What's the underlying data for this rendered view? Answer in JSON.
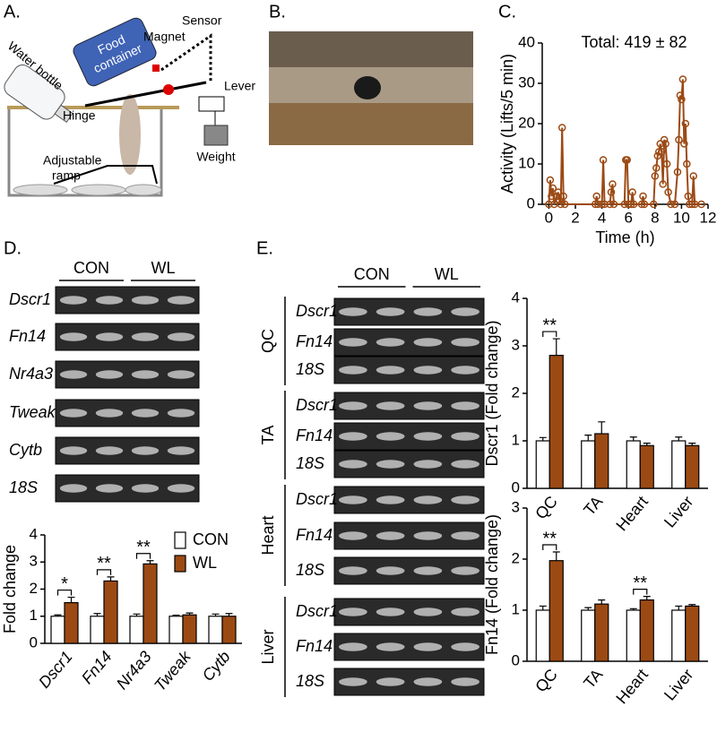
{
  "panels": {
    "a": "A.",
    "b": "B.",
    "c": "C.",
    "d": "D.",
    "e": "E."
  },
  "diagram": {
    "water_bottle": "Water bottle",
    "food_container": [
      "Food",
      "container"
    ],
    "magnet": "Magnet",
    "sensor": "Sensor",
    "lever": "Lever",
    "hinge": "Hinge",
    "ramp": [
      "Adjustable",
      "ramp"
    ],
    "weight": "Weight"
  },
  "gels_d": {
    "header": [
      "CON",
      "WL"
    ],
    "rows": [
      "Dscr1",
      "Fn14",
      "Nr4a3",
      "Tweak",
      "Cytb",
      "18S"
    ]
  },
  "gels_e": {
    "header": [
      "CON",
      "WL"
    ],
    "groups": [
      {
        "name": "QC",
        "rows": [
          "Dscr1",
          "Fn14",
          "18S"
        ]
      },
      {
        "name": "TA",
        "rows": [
          "Dscr1",
          "Fn14",
          "18S"
        ]
      },
      {
        "name": "Heart",
        "rows": [
          "Dscr1",
          "Fn14",
          "18S"
        ]
      },
      {
        "name": "Liver",
        "rows": [
          "Dscr1",
          "Fn14",
          "18S"
        ]
      }
    ]
  },
  "chart_data": [
    {
      "type": "line",
      "annotation": "Total: 419 ± 82",
      "xlabel": "Time (h)",
      "ylabel": "Activity (Lifts/5 min)",
      "color": "#9c4a14",
      "x": [
        0,
        0.1,
        0.2,
        0.3,
        0.4,
        0.6,
        0.7,
        0.8,
        0.9,
        1.0,
        1.1,
        1.2,
        3.5,
        3.6,
        3.7,
        4.0,
        4.1,
        4.2,
        4.6,
        4.7,
        4.8,
        4.9,
        5.7,
        5.8,
        5.9,
        6.0,
        6.2,
        6.3,
        6.4,
        7.0,
        7.1,
        7.2,
        7.9,
        8.0,
        8.1,
        8.2,
        8.3,
        8.4,
        8.5,
        8.6,
        8.7,
        8.8,
        8.9,
        9.0,
        9.2,
        9.5,
        9.7,
        9.8,
        9.9,
        10.0,
        10.1,
        10.2,
        10.3,
        10.4,
        10.5,
        10.6,
        10.8,
        10.9,
        11.0,
        11.5
      ],
      "values": [
        0,
        6,
        2,
        4,
        0,
        2,
        3,
        1,
        0,
        19,
        2,
        0,
        0,
        2,
        0,
        0,
        11,
        0,
        0,
        3,
        5,
        0,
        0,
        11,
        11,
        0,
        0,
        3,
        0,
        0,
        2,
        0,
        0,
        7,
        9,
        12,
        13,
        15,
        13,
        5,
        16,
        15,
        10,
        3,
        0,
        0,
        8,
        16,
        27,
        26,
        31,
        15,
        20,
        10,
        2,
        0,
        0,
        7,
        0,
        0
      ],
      "xlim": [
        -0.5,
        12
      ],
      "xticks": [
        0,
        2,
        4,
        6,
        8,
        10,
        12
      ],
      "ylim": [
        0,
        40
      ],
      "yticks": [
        0,
        10,
        20,
        30,
        40
      ]
    },
    {
      "type": "bar",
      "ylabel": "Fold change",
      "categories": [
        "Dscr1",
        "Fn14",
        "Nr4a3",
        "Tweak",
        "Cytb"
      ],
      "series": [
        {
          "name": "CON",
          "color": "#ffffff",
          "values": [
            1,
            1,
            1,
            1,
            1
          ],
          "errors": [
            0.05,
            0.1,
            0.08,
            0.04,
            0.08
          ]
        },
        {
          "name": "WL",
          "color": "#9c4a14",
          "values": [
            1.5,
            2.3,
            2.93,
            1.05,
            1.0
          ],
          "errors": [
            0.2,
            0.15,
            0.12,
            0.07,
            0.1
          ]
        }
      ],
      "significance": [
        "*",
        "**",
        "**",
        null,
        null
      ],
      "ylim": [
        0,
        4
      ],
      "yticks": [
        0,
        1,
        2,
        3,
        4
      ],
      "legend": "top-right"
    },
    {
      "type": "bar",
      "ylabel": "Dscr1 (Fold change)",
      "categories": [
        "QC",
        "TA",
        "Heart",
        "Liver"
      ],
      "series": [
        {
          "name": "CON",
          "color": "#ffffff",
          "values": [
            1,
            1,
            1,
            1
          ],
          "errors": [
            0.07,
            0.12,
            0.08,
            0.08
          ]
        },
        {
          "name": "WL",
          "color": "#9c4a14",
          "values": [
            2.8,
            1.15,
            0.9,
            0.9
          ],
          "errors": [
            0.35,
            0.25,
            0.05,
            0.05
          ]
        }
      ],
      "significance": [
        "**",
        null,
        null,
        null
      ],
      "ylim": [
        0,
        4
      ],
      "yticks": [
        0,
        1,
        2,
        3,
        4
      ]
    },
    {
      "type": "bar",
      "ylabel": "Fn14 (Fold change)",
      "categories": [
        "QC",
        "TA",
        "Heart",
        "Liver"
      ],
      "series": [
        {
          "name": "CON",
          "color": "#ffffff",
          "values": [
            1,
            1,
            1,
            1
          ],
          "errors": [
            0.08,
            0.05,
            0.03,
            0.08
          ]
        },
        {
          "name": "WL",
          "color": "#9c4a14",
          "values": [
            1.97,
            1.12,
            1.2,
            1.08
          ],
          "errors": [
            0.17,
            0.08,
            0.07,
            0.03
          ]
        }
      ],
      "significance": [
        "**",
        null,
        "**",
        null
      ],
      "ylim": [
        0,
        3
      ],
      "yticks": [
        0,
        1,
        2,
        3
      ]
    }
  ]
}
